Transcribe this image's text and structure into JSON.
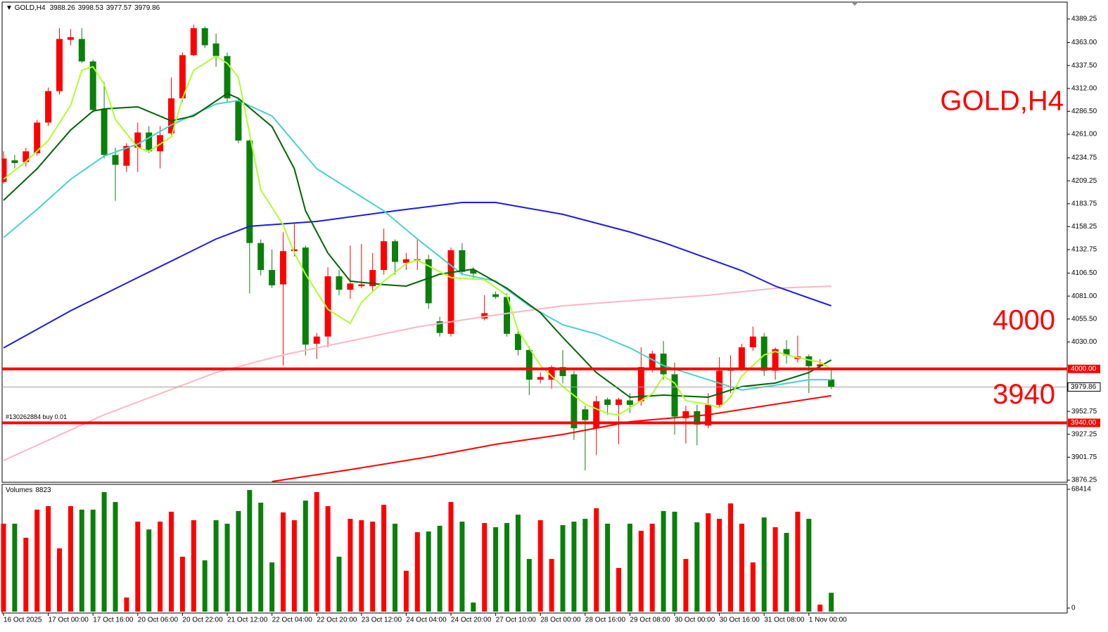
{
  "chart_data": {
    "type": "candlestick",
    "symbol": "GOLD,H4",
    "up_color": "#ff0000",
    "down_color": "#0a800a",
    "ohlc": [
      [
        4208,
        4242,
        4206,
        4234
      ],
      [
        4232,
        4238,
        4223,
        4229
      ],
      [
        4230,
        4246,
        4225,
        4242
      ],
      [
        4240,
        4277,
        4237,
        4274
      ],
      [
        4274,
        4313,
        4270,
        4309
      ],
      [
        4309,
        4379,
        4305,
        4367
      ],
      [
        4366,
        4378,
        4360,
        4369
      ],
      [
        4367,
        4379,
        4340,
        4342
      ],
      [
        4342,
        4344,
        4285,
        4288
      ],
      [
        4289,
        4319,
        4234,
        4238
      ],
      [
        4238,
        4246,
        4187,
        4227
      ],
      [
        4226,
        4251,
        4219,
        4248
      ],
      [
        4246,
        4274,
        4219,
        4263
      ],
      [
        4263,
        4270,
        4240,
        4242
      ],
      [
        4242,
        4270,
        4223,
        4260
      ],
      [
        4262,
        4324,
        4258,
        4301
      ],
      [
        4301,
        4352,
        4297,
        4349
      ],
      [
        4349,
        4383,
        4348,
        4379
      ],
      [
        4379,
        4381,
        4357,
        4360
      ],
      [
        4362,
        4373,
        4336,
        4348
      ],
      [
        4348,
        4352,
        4297,
        4301
      ],
      [
        4298,
        4301,
        4251,
        4254
      ],
      [
        4254,
        4255,
        4084,
        4140
      ],
      [
        4140,
        4144,
        4104,
        4110
      ],
      [
        4110,
        4133,
        4090,
        4093
      ],
      [
        4094,
        4152,
        4004,
        4131
      ],
      [
        4131,
        4162,
        4125,
        4133
      ],
      [
        4135,
        4137,
        4015,
        4027
      ],
      [
        4028,
        4040,
        4011,
        4036
      ],
      [
        4036,
        4113,
        4024,
        4103
      ],
      [
        4103,
        4110,
        4082,
        4088
      ],
      [
        4088,
        4137,
        4078,
        4095
      ],
      [
        4092,
        4139,
        4090,
        4094
      ],
      [
        4092,
        4129,
        4086,
        4110
      ],
      [
        4110,
        4156,
        4105,
        4142
      ],
      [
        4142,
        4144,
        4105,
        4119
      ],
      [
        4118,
        4129,
        4110,
        4122
      ],
      [
        4121,
        4144,
        4110,
        4122
      ],
      [
        4122,
        4127,
        4067,
        4073
      ],
      [
        4053,
        4058,
        4036,
        4040
      ],
      [
        4039,
        4135,
        4036,
        4132
      ],
      [
        4132,
        4140,
        4104,
        4108
      ],
      [
        4110,
        4113,
        4101,
        4106
      ],
      [
        4056,
        4082,
        4054,
        4062
      ],
      [
        4083,
        4086,
        4078,
        4080
      ],
      [
        4080,
        4084,
        4036,
        4039
      ],
      [
        4039,
        4043,
        4015,
        4021
      ],
      [
        4021,
        4025,
        3971,
        3988
      ],
      [
        3988,
        3996,
        3984,
        3991
      ],
      [
        3988,
        4004,
        3978,
        4002
      ],
      [
        4002,
        4021,
        3984,
        3992
      ],
      [
        3994,
        3998,
        3921,
        3934
      ],
      [
        3955,
        3959,
        3887,
        3943
      ],
      [
        3934,
        3970,
        3904,
        3964
      ],
      [
        3966,
        3968,
        3949,
        3960
      ],
      [
        3960,
        3968,
        3916,
        3966
      ],
      [
        3965,
        3973,
        3951,
        3960
      ],
      [
        3964,
        4024,
        3959,
        4002
      ],
      [
        4000,
        4020,
        3996,
        4017
      ],
      [
        4017,
        4031,
        3988,
        3994
      ],
      [
        3994,
        4007,
        3927,
        3947
      ],
      [
        3945,
        3959,
        3917,
        3953
      ],
      [
        3953,
        3960,
        3915,
        3938
      ],
      [
        3937,
        3973,
        3934,
        3960
      ],
      [
        3960,
        4013,
        3957,
        3998
      ],
      [
        3998,
        4015,
        3973,
        4000
      ],
      [
        4001,
        4028,
        3998,
        4024
      ],
      [
        4024,
        4047,
        4020,
        4036
      ],
      [
        4036,
        4040,
        3992,
        3998
      ],
      [
        3998,
        4024,
        3988,
        4022
      ],
      [
        4022,
        4032,
        4006,
        4015
      ],
      [
        4011,
        4037,
        4007,
        4014
      ],
      [
        4014,
        4016,
        3973,
        4003
      ],
      [
        4003,
        4011,
        4000,
        4005
      ],
      [
        3988.26,
        3998.53,
        3977.57,
        3979.86
      ]
    ],
    "ylim": [
      3873.9,
      4408.0
    ],
    "yticks": [
      {
        "value": 4389.25,
        "label": "4389.25"
      },
      {
        "value": 4363,
        "label": "4363.00"
      },
      {
        "value": 4337.5,
        "label": "4337.50"
      },
      {
        "value": 4312,
        "label": "4312.00"
      },
      {
        "value": 4286.5,
        "label": "4286.50"
      },
      {
        "value": 4261,
        "label": "4261.00"
      },
      {
        "value": 4234.75,
        "label": "4234.75"
      },
      {
        "value": 4209.25,
        "label": "4209.25"
      },
      {
        "value": 4183.75,
        "label": "4183.75"
      },
      {
        "value": 4158.25,
        "label": "4158.25"
      },
      {
        "value": 4132.75,
        "label": "4132.75"
      },
      {
        "value": 4106.5,
        "label": "4106.50"
      },
      {
        "value": 4081,
        "label": "4081.00"
      },
      {
        "value": 4055.5,
        "label": "4055.50"
      },
      {
        "value": 4030,
        "label": "4030.00"
      },
      {
        "value": 3952.75,
        "label": "3952.75"
      },
      {
        "value": 3927.25,
        "label": "3927.25"
      },
      {
        "value": 3901.75,
        "label": "3901.75"
      },
      {
        "value": 3876.25,
        "label": "3876.25"
      }
    ],
    "xticks": [
      {
        "value": 0,
        "label": "16 Oct 2025"
      },
      {
        "value": 4,
        "label": "17 Oct 00:00"
      },
      {
        "value": 8,
        "label": "17 Oct 16:00"
      },
      {
        "value": 12,
        "label": "20 Oct 06:00"
      },
      {
        "value": 16,
        "label": "20 Oct 22:00"
      },
      {
        "value": 20,
        "label": "21 Oct 12:00"
      },
      {
        "value": 24,
        "label": "22 Oct 04:00"
      },
      {
        "value": 28,
        "label": "22 Oct 20:00"
      },
      {
        "value": 32,
        "label": "23 Oct 12:00"
      },
      {
        "value": 36,
        "label": "24 Oct 04:00"
      },
      {
        "value": 40,
        "label": "24 Oct 20:00"
      },
      {
        "value": 44,
        "label": "27 Oct 10:00"
      },
      {
        "value": 48,
        "label": "28 Oct 00:00"
      },
      {
        "value": 52,
        "label": "28 Oct 16:00"
      },
      {
        "value": 56,
        "label": "29 Oct 08:00"
      },
      {
        "value": 60,
        "label": "30 Oct 00:00"
      },
      {
        "value": 64,
        "label": "30 Oct 16:00"
      },
      {
        "value": 68,
        "label": "31 Oct 08:00"
      },
      {
        "value": 72,
        "label": "1 Nov 00:00"
      }
    ],
    "indicators": [
      {
        "color": "#ffb6c1",
        "x": [
          0,
          9,
          19,
          25,
          31,
          37,
          44,
          50,
          56,
          63,
          69,
          74
        ],
        "values": [
          3898.1,
          3949.0,
          3996.0,
          4015.5,
          4031.1,
          4046.7,
          4060.0,
          4070.2,
          4075.7,
          4081.9,
          4089.7,
          4092.1
        ]
      },
      {
        "color": "#ff0000",
        "x": [
          24,
          31,
          38,
          44,
          50,
          56,
          63,
          69,
          74
        ],
        "values": [
          3874.7,
          3888.0,
          3902.1,
          3916.1,
          3927.1,
          3941.2,
          3949.0,
          3960.7,
          3970.2
        ]
      },
      {
        "color": "#1a1ae6",
        "x": [
          0,
          6,
          12,
          19,
          22,
          28,
          35,
          41,
          44,
          50,
          56,
          59,
          66,
          69,
          74
        ],
        "values": [
          4023.3,
          4064.7,
          4101.5,
          4144.5,
          4158.6,
          4164.0,
          4175.8,
          4185.1,
          4185.1,
          4171.9,
          4152.3,
          4140.6,
          4109.3,
          4092.1,
          4070.2
        ]
      },
      {
        "color": "#48d1cc",
        "x": [
          0,
          3,
          6,
          9,
          12,
          15,
          19,
          21,
          24,
          28,
          31,
          34,
          37,
          41,
          44,
          47,
          50,
          53,
          56,
          59,
          63,
          66,
          69,
          72,
          74
        ],
        "values": [
          4146.0,
          4177.3,
          4210.9,
          4236.8,
          4250.0,
          4271.2,
          4294.6,
          4298.5,
          4281.3,
          4222.7,
          4199.2,
          4175.8,
          4144.5,
          4105.4,
          4097.6,
          4070.2,
          4049.1,
          4038.9,
          4023.3,
          4003.7,
          3988.0,
          3976.4,
          3981.8,
          3988.0,
          3988.0
        ]
      },
      {
        "color": "#006400",
        "x": [
          0,
          3,
          6,
          8,
          9,
          12,
          15,
          17,
          20,
          21,
          24,
          26,
          27,
          29,
          31,
          34,
          36,
          39,
          42,
          45,
          48,
          50,
          53,
          56,
          59,
          63,
          66,
          69,
          72,
          74
        ],
        "values": [
          4187.5,
          4222.7,
          4265.7,
          4286.8,
          4289.2,
          4291.5,
          4275.9,
          4281.3,
          4306.4,
          4300.9,
          4269.6,
          4222.7,
          4175.8,
          4128.8,
          4097.6,
          4093.7,
          4092.1,
          4105.4,
          4110.9,
          4089.7,
          4062.4,
          4035.0,
          3995.9,
          3968.5,
          3970.9,
          3968.5,
          3980.3,
          3984.2,
          3995.9,
          4010.0
        ]
      },
      {
        "color": "#adff2f",
        "x": [
          0,
          2,
          4,
          6,
          7,
          8,
          9,
          10,
          12,
          13,
          15,
          16,
          17,
          19,
          20,
          21,
          22,
          23,
          25,
          26,
          27,
          29,
          31,
          32,
          34,
          36,
          37,
          40,
          43,
          45,
          46,
          48,
          50,
          52,
          54,
          55,
          56,
          58,
          59,
          60,
          61,
          63,
          64,
          65,
          66,
          68,
          69,
          70,
          72,
          73,
          74
        ],
        "values": [
          4211.0,
          4230.5,
          4254.0,
          4293.1,
          4332.2,
          4336.1,
          4316.5,
          4277.4,
          4246.1,
          4242.2,
          4257.9,
          4300.9,
          4332.2,
          4347.8,
          4340.0,
          4324.3,
          4261.8,
          4199.2,
          4160.1,
          4128.8,
          4105.4,
          4066.3,
          4050.6,
          4074.1,
          4097.6,
          4117.1,
          4121.0,
          4101.5,
          4099.1,
          4081.9,
          4042.8,
          4003.7,
          3980.3,
          3960.7,
          3950.5,
          3949.0,
          3956.8,
          3972.4,
          3992.0,
          3984.2,
          3964.6,
          3960.7,
          3956.8,
          3968.5,
          3992.0,
          4015.5,
          4019.4,
          4015.5,
          4010.0,
          4007.6,
          3999.8
        ]
      }
    ],
    "hlines": [
      {
        "value": 4000,
        "label": "4000.00",
        "color": "#ff0000"
      },
      {
        "value": 3940,
        "label": "3940.00",
        "color": "#ff0000"
      }
    ],
    "order_label": "#130262884 buy 0.01",
    "price_line_color": "#a0a0a0",
    "volume": {
      "name": "Volumes",
      "ylim": [
        0,
        68414
      ],
      "yticks": [
        68414,
        0
      ],
      "values": [
        48600,
        48600,
        40500,
        56700,
        58700,
        34400,
        58700,
        56700,
        56700,
        66800,
        61100,
        6100,
        49800,
        45300,
        49800,
        55500,
        29600,
        50600,
        27500,
        50600,
        48600,
        55900,
        68000,
        60700,
        26300,
        55100,
        50600,
        61900,
        66800,
        58700,
        29600,
        51400,
        50600,
        49800,
        59500,
        48600,
        21500,
        43700,
        44100,
        47400,
        61100,
        49800,
        3200,
        49000,
        46600,
        49000,
        53800,
        28300,
        50600,
        28300,
        47800,
        49800,
        51400,
        57500,
        48600,
        23100,
        48600,
        44500,
        48600,
        55900,
        55500,
        28300,
        49400,
        54600,
        51400,
        60300,
        48600,
        26300,
        52200,
        46600,
        43300,
        55500,
        51400,
        2000,
        8823
      ]
    }
  }
}
